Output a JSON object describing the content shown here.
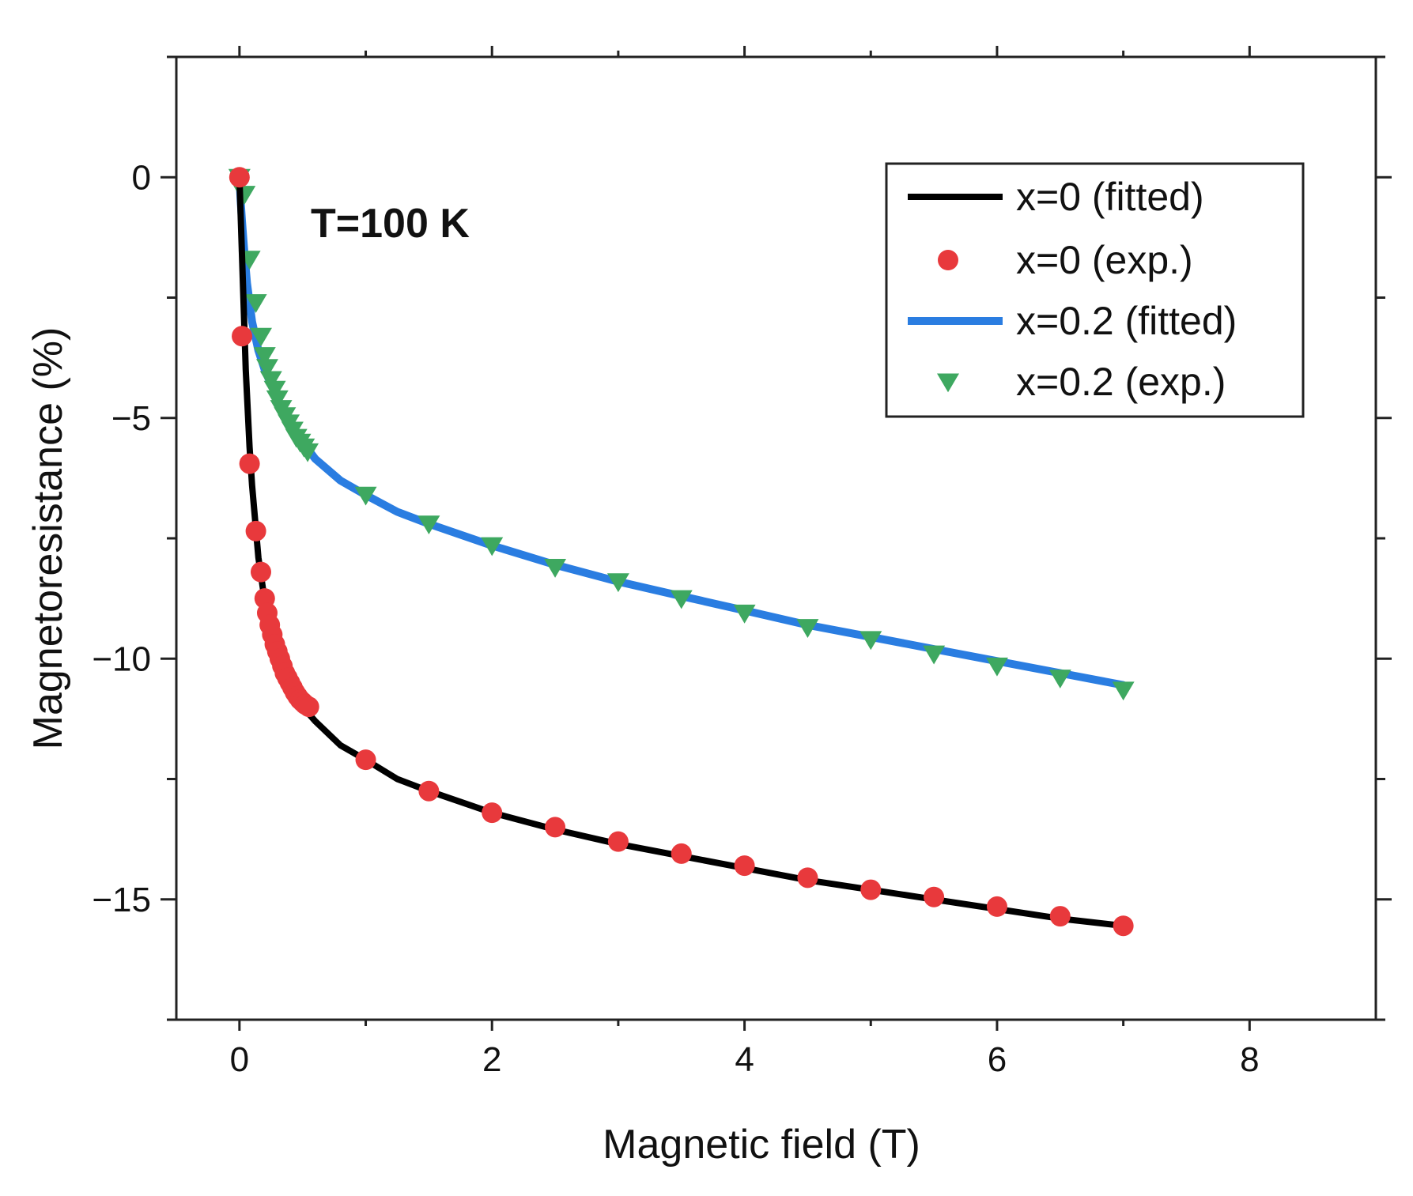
{
  "chart_data": {
    "type": "scatter",
    "title": "",
    "xlabel": "Magnetic field (T)",
    "ylabel": "Magnetoresistance (%)",
    "xlim": [
      -0.5,
      9
    ],
    "ylim": [
      -17.5,
      2.5
    ],
    "xticks": [
      0,
      2,
      4,
      6,
      8
    ],
    "xtick_labels": [
      "0",
      "2",
      "4",
      "6",
      "8"
    ],
    "yticks": [
      0,
      -5,
      -10,
      -15
    ],
    "ytick_labels": [
      "0",
      "−5",
      "−10",
      "−15"
    ],
    "annotation": "T=100 K",
    "legend_position": "top-right",
    "series": [
      {
        "name": "x=0 (fitted)",
        "style": "line",
        "color": "#000000",
        "x": [
          0.0,
          0.01,
          0.02,
          0.03,
          0.05,
          0.08,
          0.1,
          0.15,
          0.2,
          0.25,
          0.3,
          0.4,
          0.5,
          0.6,
          0.8,
          1.0,
          1.25,
          1.5,
          2.0,
          2.5,
          3.0,
          3.5,
          4.0,
          4.5,
          5.0,
          5.5,
          6.0,
          6.5,
          7.0
        ],
        "y": [
          0.0,
          -0.8,
          -1.6,
          -2.4,
          -4.0,
          -5.6,
          -6.4,
          -7.9,
          -8.8,
          -9.4,
          -9.9,
          -10.6,
          -11.0,
          -11.3,
          -11.8,
          -12.1,
          -12.5,
          -12.75,
          -13.2,
          -13.55,
          -13.85,
          -14.1,
          -14.35,
          -14.6,
          -14.8,
          -15.0,
          -15.2,
          -15.4,
          -15.55
        ]
      },
      {
        "name": "x=0 (exp.)",
        "style": "circle",
        "color": "#e8393c",
        "x": [
          0.0,
          0.02,
          0.08,
          0.13,
          0.17,
          0.2,
          0.22,
          0.24,
          0.26,
          0.28,
          0.3,
          0.32,
          0.34,
          0.36,
          0.38,
          0.4,
          0.42,
          0.44,
          0.46,
          0.48,
          0.5,
          0.52,
          0.55,
          1.0,
          1.5,
          2.0,
          2.5,
          3.0,
          3.5,
          4.0,
          4.5,
          5.0,
          5.5,
          6.0,
          6.5,
          7.0
        ],
        "y": [
          0.0,
          -3.3,
          -5.95,
          -7.35,
          -8.2,
          -8.75,
          -9.05,
          -9.3,
          -9.5,
          -9.7,
          -9.85,
          -10.0,
          -10.15,
          -10.3,
          -10.4,
          -10.5,
          -10.6,
          -10.7,
          -10.78,
          -10.85,
          -10.9,
          -10.95,
          -11.0,
          -12.1,
          -12.75,
          -13.2,
          -13.5,
          -13.8,
          -14.05,
          -14.3,
          -14.55,
          -14.8,
          -14.95,
          -15.15,
          -15.35,
          -15.55
        ]
      },
      {
        "name": "x=0.2 (fitted)",
        "style": "line",
        "color": "#2a7de1",
        "x": [
          0.0,
          0.01,
          0.02,
          0.04,
          0.06,
          0.08,
          0.1,
          0.15,
          0.2,
          0.3,
          0.4,
          0.5,
          0.6,
          0.8,
          1.0,
          1.25,
          1.5,
          2.0,
          2.5,
          3.0,
          3.5,
          4.0,
          4.5,
          5.0,
          5.5,
          6.0,
          6.5,
          7.0
        ],
        "y": [
          0.0,
          -0.5,
          -0.9,
          -1.6,
          -2.2,
          -2.6,
          -3.0,
          -3.6,
          -4.0,
          -4.6,
          -5.1,
          -5.5,
          -5.85,
          -6.3,
          -6.6,
          -6.95,
          -7.2,
          -7.65,
          -8.05,
          -8.4,
          -8.7,
          -9.0,
          -9.3,
          -9.55,
          -9.8,
          -10.05,
          -10.3,
          -10.55
        ]
      },
      {
        "name": "x=0.2 (exp.)",
        "style": "triangle-down",
        "color": "#3ea860",
        "x": [
          0.0,
          0.04,
          0.08,
          0.13,
          0.17,
          0.2,
          0.22,
          0.25,
          0.28,
          0.3,
          0.33,
          0.36,
          0.39,
          0.42,
          0.45,
          0.48,
          0.51,
          0.54,
          1.0,
          1.5,
          2.0,
          2.5,
          3.0,
          3.5,
          4.0,
          4.5,
          5.0,
          5.5,
          6.0,
          6.5,
          7.0
        ],
        "y": [
          0.0,
          -0.35,
          -1.7,
          -2.6,
          -3.3,
          -3.7,
          -3.95,
          -4.2,
          -4.4,
          -4.6,
          -4.8,
          -4.95,
          -5.1,
          -5.25,
          -5.4,
          -5.5,
          -5.6,
          -5.7,
          -6.6,
          -7.2,
          -7.65,
          -8.1,
          -8.4,
          -8.75,
          -9.05,
          -9.35,
          -9.6,
          -9.9,
          -10.15,
          -10.4,
          -10.65
        ]
      }
    ]
  }
}
